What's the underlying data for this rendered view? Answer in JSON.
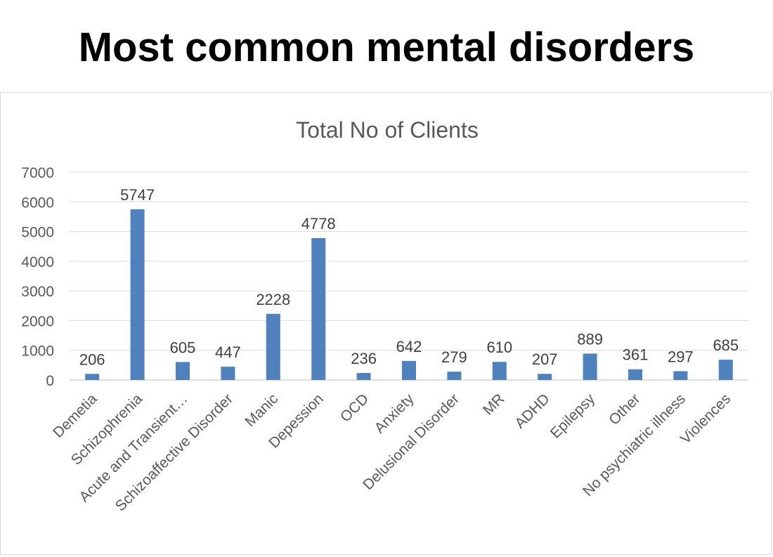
{
  "slide": {
    "title": "Most common mental disorders"
  },
  "chart_data": {
    "type": "bar",
    "title": "Total No of Clients",
    "xlabel": "",
    "ylabel": "",
    "ylim": [
      0,
      7000
    ],
    "yticks": [
      0,
      1000,
      2000,
      3000,
      4000,
      5000,
      6000,
      7000
    ],
    "grid": true,
    "legend": "none",
    "bar_color": "#4f81bd",
    "categories": [
      "Demetia",
      "Schizophrenia",
      "Acute and Transient…",
      "Schizoaffective Disorder",
      "Manic",
      "Depession",
      "OCD",
      "Anxiety",
      "Delusional Disorder",
      "MR",
      "ADHD",
      "Epilepsy",
      "Other",
      "No psychiatric illness",
      "Violences"
    ],
    "values": [
      206,
      5747,
      605,
      447,
      2228,
      4778,
      236,
      642,
      279,
      610,
      207,
      889,
      361,
      297,
      685
    ]
  }
}
